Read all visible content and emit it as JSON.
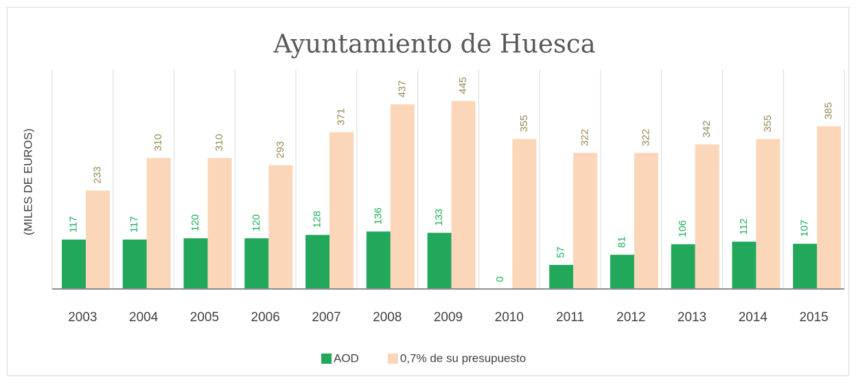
{
  "chart_data": {
    "type": "bar",
    "title": "Ayuntamiento de Huesca",
    "y_label": "(MILES DE EUROS)",
    "categories": [
      "2003",
      "2004",
      "2005",
      "2006",
      "2007",
      "2008",
      "2009",
      "2010",
      "2011",
      "2012",
      "2013",
      "2014",
      "2015"
    ],
    "series": [
      {
        "name": "AOD",
        "color": "#22a85a",
        "label_color": "#1fae5a",
        "values": [
          117,
          117,
          120,
          120,
          128,
          136,
          133,
          0,
          57,
          81,
          106,
          112,
          107
        ]
      },
      {
        "name": "0,7% de su presupuesto",
        "color": "#fbd6b8",
        "label_color": "#948a54",
        "values": [
          233,
          310,
          310,
          293,
          371,
          437,
          445,
          355,
          322,
          322,
          342,
          355,
          385
        ]
      }
    ],
    "ylim": [
      0,
      520
    ],
    "grid": true,
    "legend": "bottom"
  }
}
